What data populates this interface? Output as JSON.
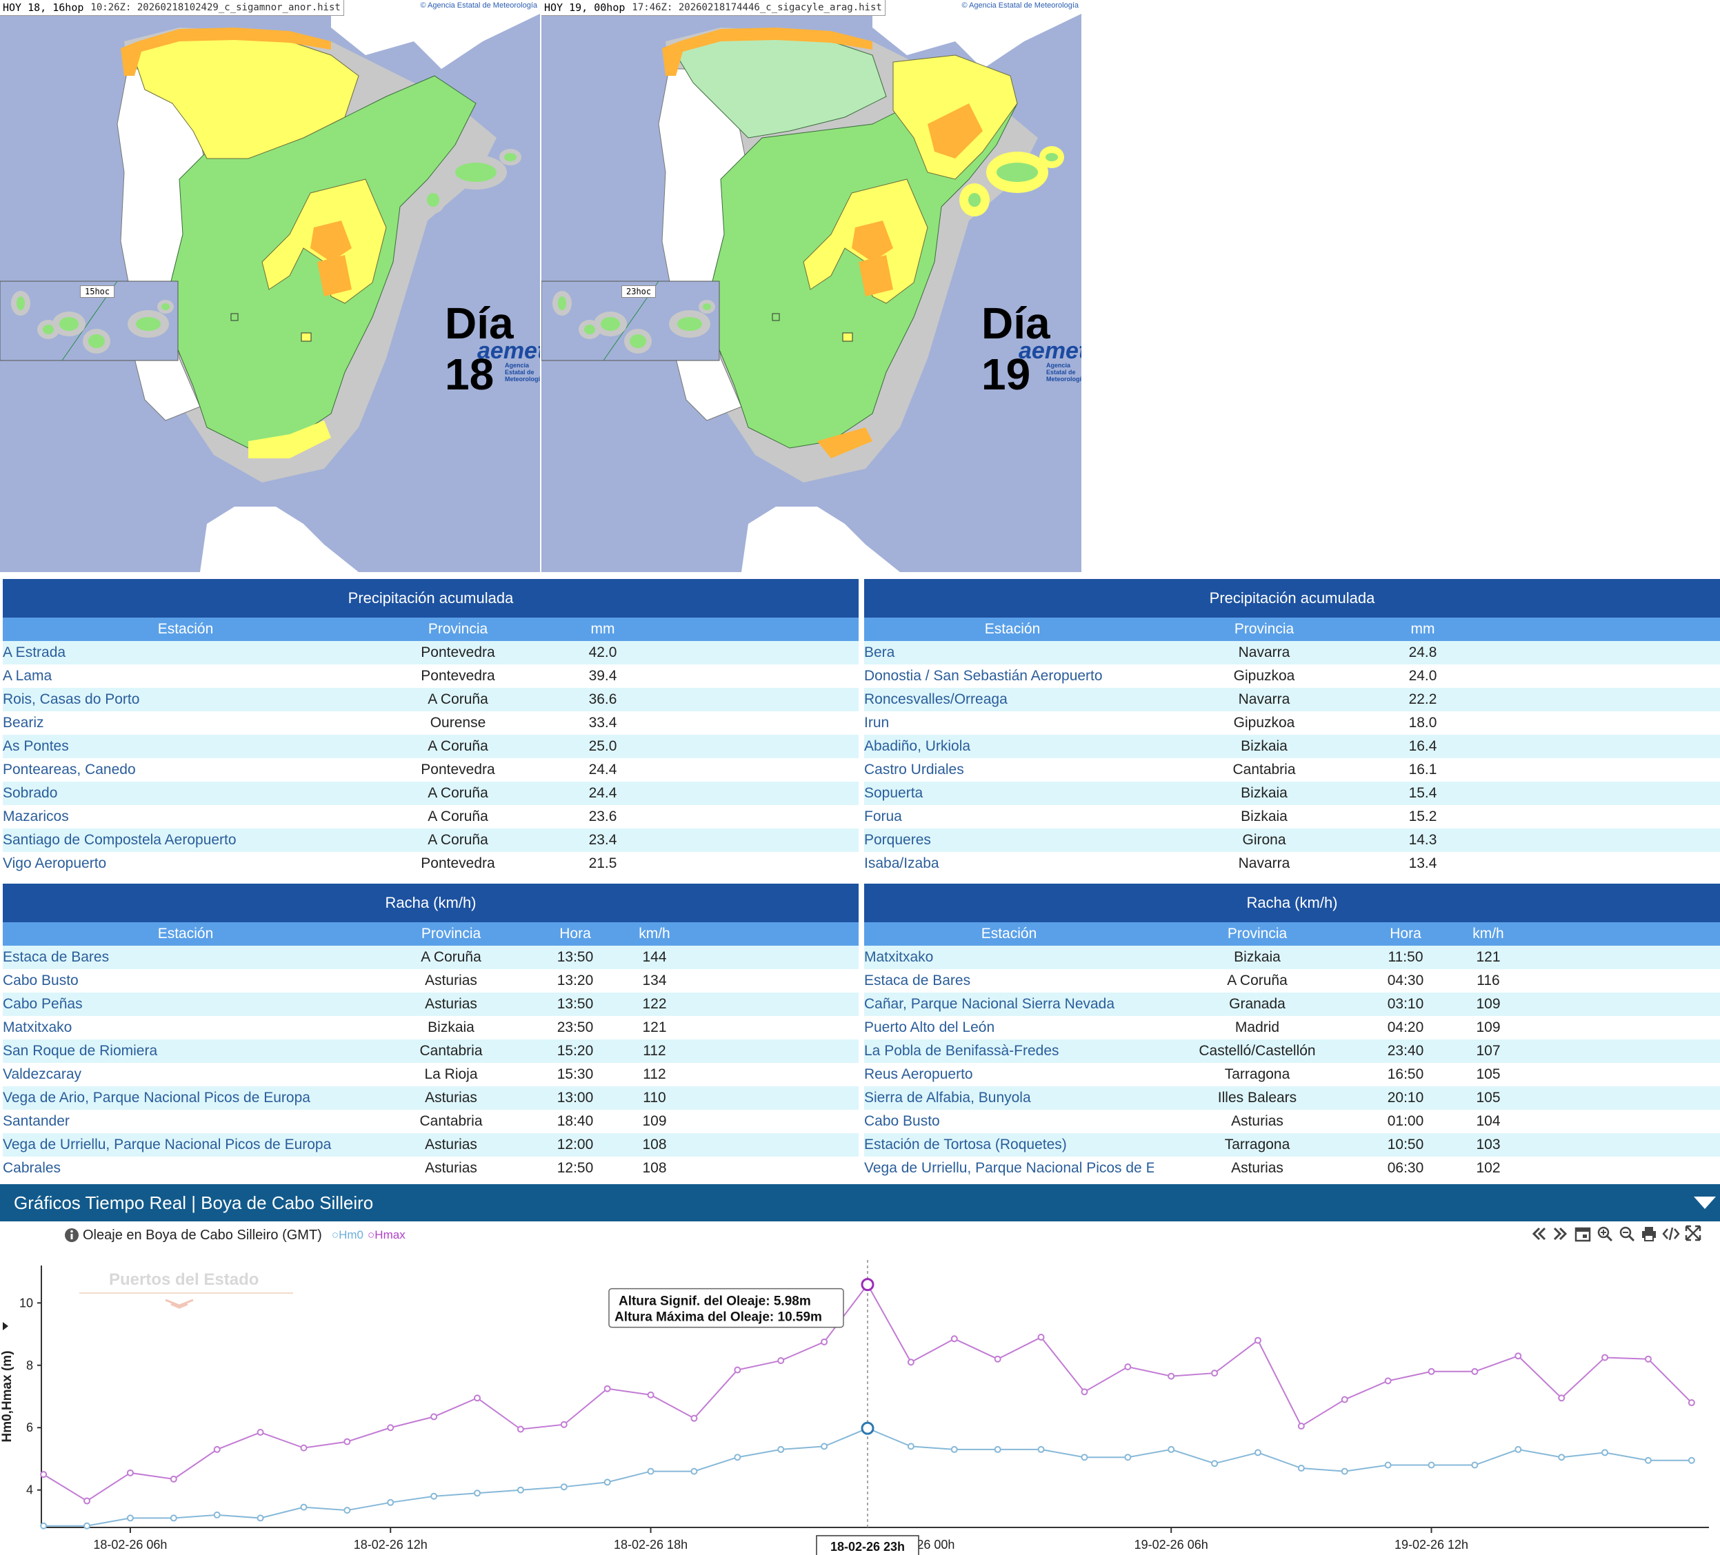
{
  "maps": {
    "left": {
      "header_hoy": "HOY 18, 16hop",
      "header_file": "10:26Z: 20260218102429_c_sigamnor_anor.hist",
      "attribution": "Agencia Estatal de Meteorología",
      "inset_label": "15hoc",
      "day_label": "Día 18",
      "logo": "aemet",
      "logo_sub": "Agencia Estatal de Meteorología"
    },
    "right": {
      "header_hoy": "HOY 19, 00hop",
      "header_file": "17:46Z: 20260218174446_c_sigacyle_arag.hist",
      "attribution": "Agencia Estatal de Meteorología",
      "inset_label": "23hoc",
      "day_label": "Día 19",
      "logo": "aemet",
      "logo_sub": "Agencia Estatal de Meteorología"
    },
    "colors": {
      "sea": "#a3b1d8",
      "land_green": "#8fe37a",
      "land_yellow": "#ffff66",
      "land_orange": "#ffb338",
      "portugal": "#ffffff",
      "africa": "#ffffff",
      "coast_buffer": "#c8c8c8"
    }
  },
  "precip_left": {
    "title": "Precipitación acumulada",
    "columns": [
      "Estación",
      "Provincia",
      "mm"
    ],
    "rows": [
      [
        "A Estrada",
        "Pontevedra",
        "42.0"
      ],
      [
        "A Lama",
        "Pontevedra",
        "39.4"
      ],
      [
        "Rois, Casas do Porto",
        "A Coruña",
        "36.6"
      ],
      [
        "Beariz",
        "Ourense",
        "33.4"
      ],
      [
        "As Pontes",
        "A Coruña",
        "25.0"
      ],
      [
        "Ponteareas, Canedo",
        "Pontevedra",
        "24.4"
      ],
      [
        "Sobrado",
        "A Coruña",
        "24.4"
      ],
      [
        "Mazaricos",
        "A Coruña",
        "23.6"
      ],
      [
        "Santiago de Compostela Aeropuerto",
        "A Coruña",
        "23.4"
      ],
      [
        "Vigo Aeropuerto",
        "Pontevedra",
        "21.5"
      ]
    ]
  },
  "precip_right": {
    "title": "Precipitación acumulada",
    "columns": [
      "Estación",
      "Provincia",
      "mm"
    ],
    "rows": [
      [
        "Bera",
        "Navarra",
        "24.8"
      ],
      [
        "Donostia / San Sebastián Aeropuerto",
        "Gipuzkoa",
        "24.0"
      ],
      [
        "Roncesvalles/Orreaga",
        "Navarra",
        "22.2"
      ],
      [
        "Irun",
        "Gipuzkoa",
        "18.0"
      ],
      [
        "Abadiño, Urkiola",
        "Bizkaia",
        "16.4"
      ],
      [
        "Castro Urdiales",
        "Cantabria",
        "16.1"
      ],
      [
        "Sopuerta",
        "Bizkaia",
        "15.4"
      ],
      [
        "Forua",
        "Bizkaia",
        "15.2"
      ],
      [
        "Porqueres",
        "Girona",
        "14.3"
      ],
      [
        "Isaba/Izaba",
        "Navarra",
        "13.4"
      ]
    ]
  },
  "gust_left": {
    "title": "Racha (km/h)",
    "columns": [
      "Estación",
      "Provincia",
      "Hora",
      "km/h"
    ],
    "rows": [
      [
        "Estaca de Bares",
        "A Coruña",
        "13:50",
        "144"
      ],
      [
        "Cabo Busto",
        "Asturias",
        "13:20",
        "134"
      ],
      [
        "Cabo Peñas",
        "Asturias",
        "13:50",
        "122"
      ],
      [
        "Matxitxako",
        "Bizkaia",
        "23:50",
        "121"
      ],
      [
        "San Roque de Riomiera",
        "Cantabria",
        "15:20",
        "112"
      ],
      [
        "Valdezcaray",
        "La Rioja",
        "15:30",
        "112"
      ],
      [
        "Vega de Ario, Parque Nacional Picos de Europa",
        "Asturias",
        "13:00",
        "110"
      ],
      [
        "Santander",
        "Cantabria",
        "18:40",
        "109"
      ],
      [
        "Vega de Urriellu, Parque Nacional Picos de Europa",
        "Asturias",
        "12:00",
        "108"
      ],
      [
        "Cabrales",
        "Asturias",
        "12:50",
        "108"
      ]
    ]
  },
  "gust_right": {
    "title": "Racha (km/h)",
    "columns": [
      "Estación",
      "Provincia",
      "Hora",
      "km/h"
    ],
    "rows": [
      [
        "Matxitxako",
        "Bizkaia",
        "11:50",
        "121"
      ],
      [
        "Estaca de Bares",
        "A Coruña",
        "04:30",
        "116"
      ],
      [
        "Cañar, Parque Nacional Sierra Nevada",
        "Granada",
        "03:10",
        "109"
      ],
      [
        "Puerto Alto del León",
        "Madrid",
        "04:20",
        "109"
      ],
      [
        "La Pobla de Benifassà-Fredes",
        "Castelló/Castellón",
        "23:40",
        "107"
      ],
      [
        "Reus Aeropuerto",
        "Tarragona",
        "16:50",
        "105"
      ],
      [
        "Sierra de Alfabia, Bunyola",
        "Illes Balears",
        "20:10",
        "105"
      ],
      [
        "Cabo Busto",
        "Asturias",
        "01:00",
        "104"
      ],
      [
        "Estación de Tortosa (Roquetes)",
        "Tarragona",
        "10:50",
        "103"
      ],
      [
        "Vega de Urriellu, Parque Nacional Picos de Europa",
        "Asturias",
        "06:30",
        "102"
      ]
    ]
  },
  "graph": {
    "bar_title": "Gráficos Tiempo Real | Boya de Cabo Silleiro",
    "chart_title": "Oleaje en Boya de Cabo Silleiro (GMT)",
    "legend_hm0": "Hm0",
    "legend_hmax": "Hmax",
    "watermark": "Puertos del Estado",
    "tooltip_signif": "Altura Signif. del Oleaje: 5.98m",
    "tooltip_max": "Altura Máxima del Oleaje: 10.59m",
    "crosshair_label": "18-02-26 23h",
    "toolbar_icons": [
      "first-page-icon",
      "next-page-icon",
      "calendar-icon",
      "zoom-in-icon",
      "zoom-out-icon",
      "print-icon",
      "code-icon",
      "fullscreen-icon"
    ],
    "colors": {
      "hm0": "#86b8d8",
      "hmax": "#c27bd4",
      "bar": "#125a8c"
    }
  },
  "chart_data": {
    "type": "line",
    "title": "Oleaje en Boya de Cabo Silleiro (GMT)",
    "ylabel": "Hm0,Hmax (m)",
    "ylim": [
      2.8,
      11.2
    ],
    "yticks": [
      4,
      6,
      8,
      10
    ],
    "x_hours_from_18_02_00h": [
      4,
      5,
      6,
      7,
      8,
      9,
      10,
      11,
      12,
      13,
      14,
      15,
      16,
      17,
      18,
      19,
      20,
      21,
      22,
      23,
      24,
      25,
      26,
      27,
      28,
      29,
      30,
      31,
      32,
      33,
      34,
      35,
      36,
      37,
      38,
      39,
      40,
      41,
      42
    ],
    "xticks": [
      "18-02-26 06h",
      "18-02-26 12h",
      "18-02-26 18h",
      "18-02-26 23h",
      "19-02-26 06h",
      "19-02-26 12h"
    ],
    "series": [
      {
        "name": "Hm0",
        "values": [
          2.85,
          2.85,
          3.1,
          3.1,
          3.2,
          3.1,
          3.45,
          3.35,
          3.6,
          3.8,
          3.9,
          4.0,
          4.1,
          4.25,
          4.6,
          4.6,
          5.05,
          5.3,
          5.4,
          5.98,
          5.4,
          5.3,
          5.3,
          5.3,
          5.05,
          5.05,
          5.3,
          4.85,
          5.2,
          4.7,
          4.6,
          4.8,
          4.8,
          4.8,
          5.3,
          5.05,
          5.2,
          4.95,
          4.95
        ]
      },
      {
        "name": "Hmax",
        "values": [
          4.5,
          3.65,
          4.55,
          4.35,
          5.3,
          5.85,
          5.35,
          5.55,
          6.0,
          6.35,
          6.95,
          5.95,
          6.1,
          7.25,
          7.05,
          6.3,
          7.85,
          8.15,
          8.75,
          10.59,
          8.1,
          8.85,
          8.2,
          8.9,
          7.15,
          7.95,
          7.65,
          7.75,
          8.8,
          6.05,
          6.9,
          7.5,
          7.8,
          7.8,
          8.3,
          6.95,
          8.25,
          8.2,
          6.8
        ]
      }
    ]
  }
}
